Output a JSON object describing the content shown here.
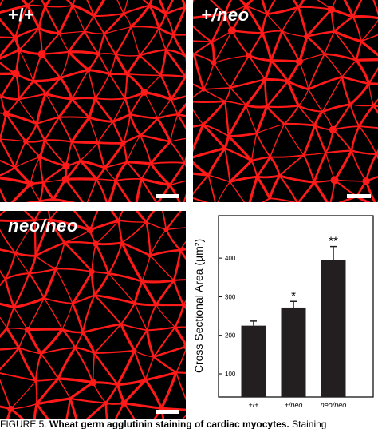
{
  "panels": [
    {
      "id": "wt",
      "label": "+/+"
    },
    {
      "id": "het",
      "label": "+/neo"
    },
    {
      "id": "hom",
      "label": "neo/neo"
    }
  ],
  "colors": {
    "stain": "#ff1a1a",
    "background": "#000000",
    "bar": "#231f20"
  },
  "chart_data": {
    "type": "bar",
    "categories": [
      "+/+",
      "+/neo",
      "neo/neo"
    ],
    "values": [
      225,
      272,
      395
    ],
    "errors": [
      12,
      16,
      35
    ],
    "significance": [
      "",
      "*",
      "**"
    ],
    "title": "",
    "xlabel": "",
    "ylabel": "Cross Sectional Area (µm²)",
    "ylim": [
      40,
      510
    ],
    "yticks": [
      100,
      200,
      300,
      400
    ]
  },
  "caption": {
    "prefix": "FIGURE 5.",
    "bold_text": "Wheat germ agglutinin staining of cardiac myocytes.",
    "rest": " Staining"
  }
}
